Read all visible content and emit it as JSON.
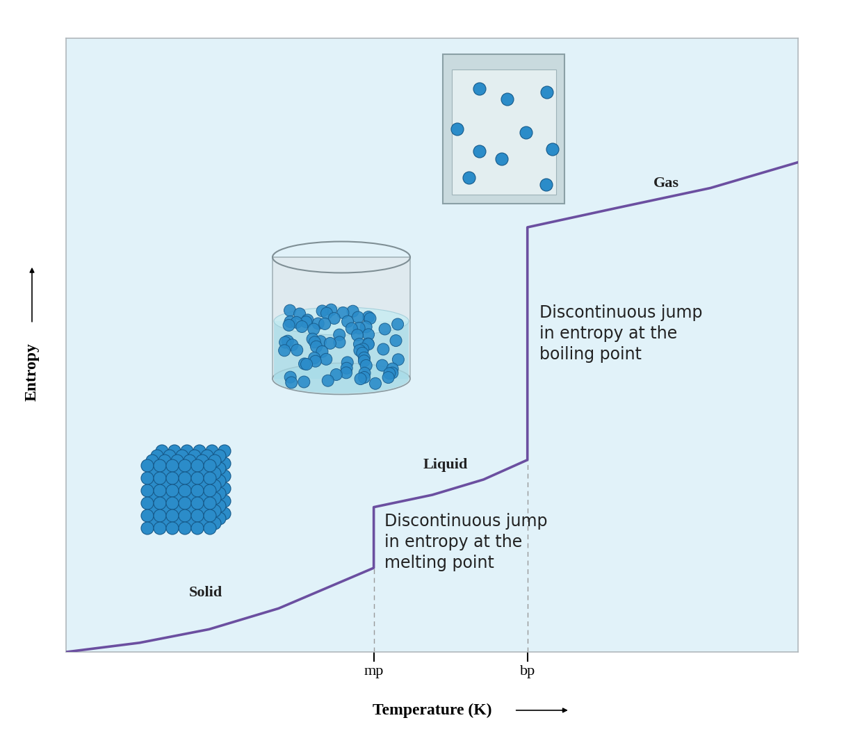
{
  "chart_data": {
    "type": "line",
    "x_label": "Temperature (K)",
    "y_label": "Entropy",
    "x": [
      0,
      10,
      19.5,
      29,
      42,
      42,
      50,
      57,
      63,
      63,
      75,
      88,
      100
    ],
    "values": [
      0,
      1.5,
      3.7,
      7.1,
      13.7,
      23.6,
      25.6,
      28.1,
      31.3,
      69.2,
      72.3,
      75.6,
      79.8
    ],
    "color": "#6b4fa0",
    "xlim": [
      0,
      100
    ],
    "ylim": [
      0,
      100
    ],
    "xticks": [
      {
        "value": 42,
        "label": "mp"
      },
      {
        "value": 63,
        "label": "bp"
      }
    ],
    "yticks": [],
    "tick_labels": "x",
    "phase_labels": [
      "Solid",
      "Liquid",
      "Gas"
    ],
    "annotations": [
      "Discontinuous jump\nin entropy at the\nmelting point",
      "Discontinuous jump\nin entropy at the\nboiling point"
    ]
  }
}
